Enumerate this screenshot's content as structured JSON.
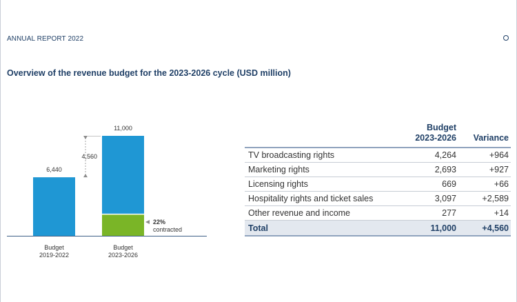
{
  "header": {
    "report_label": "ANNUAL REPORT 2022"
  },
  "page_title": "Overview of the revenue budget for the 2023-2026 cycle (USD million)",
  "colors": {
    "bar_blue": "#1f97d4",
    "bar_green": "#7ab527",
    "navy": "#1f3f66",
    "arrow_grey": "#8c8c8c"
  },
  "chart_data": {
    "type": "bar",
    "title": "Overview of the revenue budget for the 2023-2026 cycle (USD million)",
    "categories": [
      "Budget 2019-2022",
      "Budget 2023-2026"
    ],
    "category_lines": [
      [
        "Budget",
        "2019-2022"
      ],
      [
        "Budget",
        "2023-2026"
      ]
    ],
    "values": [
      6440,
      11000
    ],
    "value_labels": [
      "6,440",
      "11,000"
    ],
    "contracted_share": 0.22,
    "contracted_label_lines": [
      "22%",
      "contracted"
    ],
    "increase": 4560,
    "increase_label": "4,560",
    "ylim": [
      0,
      11000
    ],
    "xlabel": "",
    "ylabel": "USD million",
    "grid": false
  },
  "table": {
    "headers": {
      "budget_line1": "Budget",
      "budget_line2": "2023-2026",
      "variance": "Variance"
    },
    "rows": [
      {
        "label": "TV broadcasting rights",
        "budget": "4,264",
        "variance": "+964"
      },
      {
        "label": "Marketing rights",
        "budget": "2,693",
        "variance": "+927"
      },
      {
        "label": "Licensing rights",
        "budget": "669",
        "variance": "+66"
      },
      {
        "label": "Hospitality rights and ticket sales",
        "budget": "3,097",
        "variance": "+2,589"
      },
      {
        "label": "Other revenue and income",
        "budget": "277",
        "variance": "+14"
      }
    ],
    "total": {
      "label": "Total",
      "budget": "11,000",
      "variance": "+4,560"
    }
  }
}
